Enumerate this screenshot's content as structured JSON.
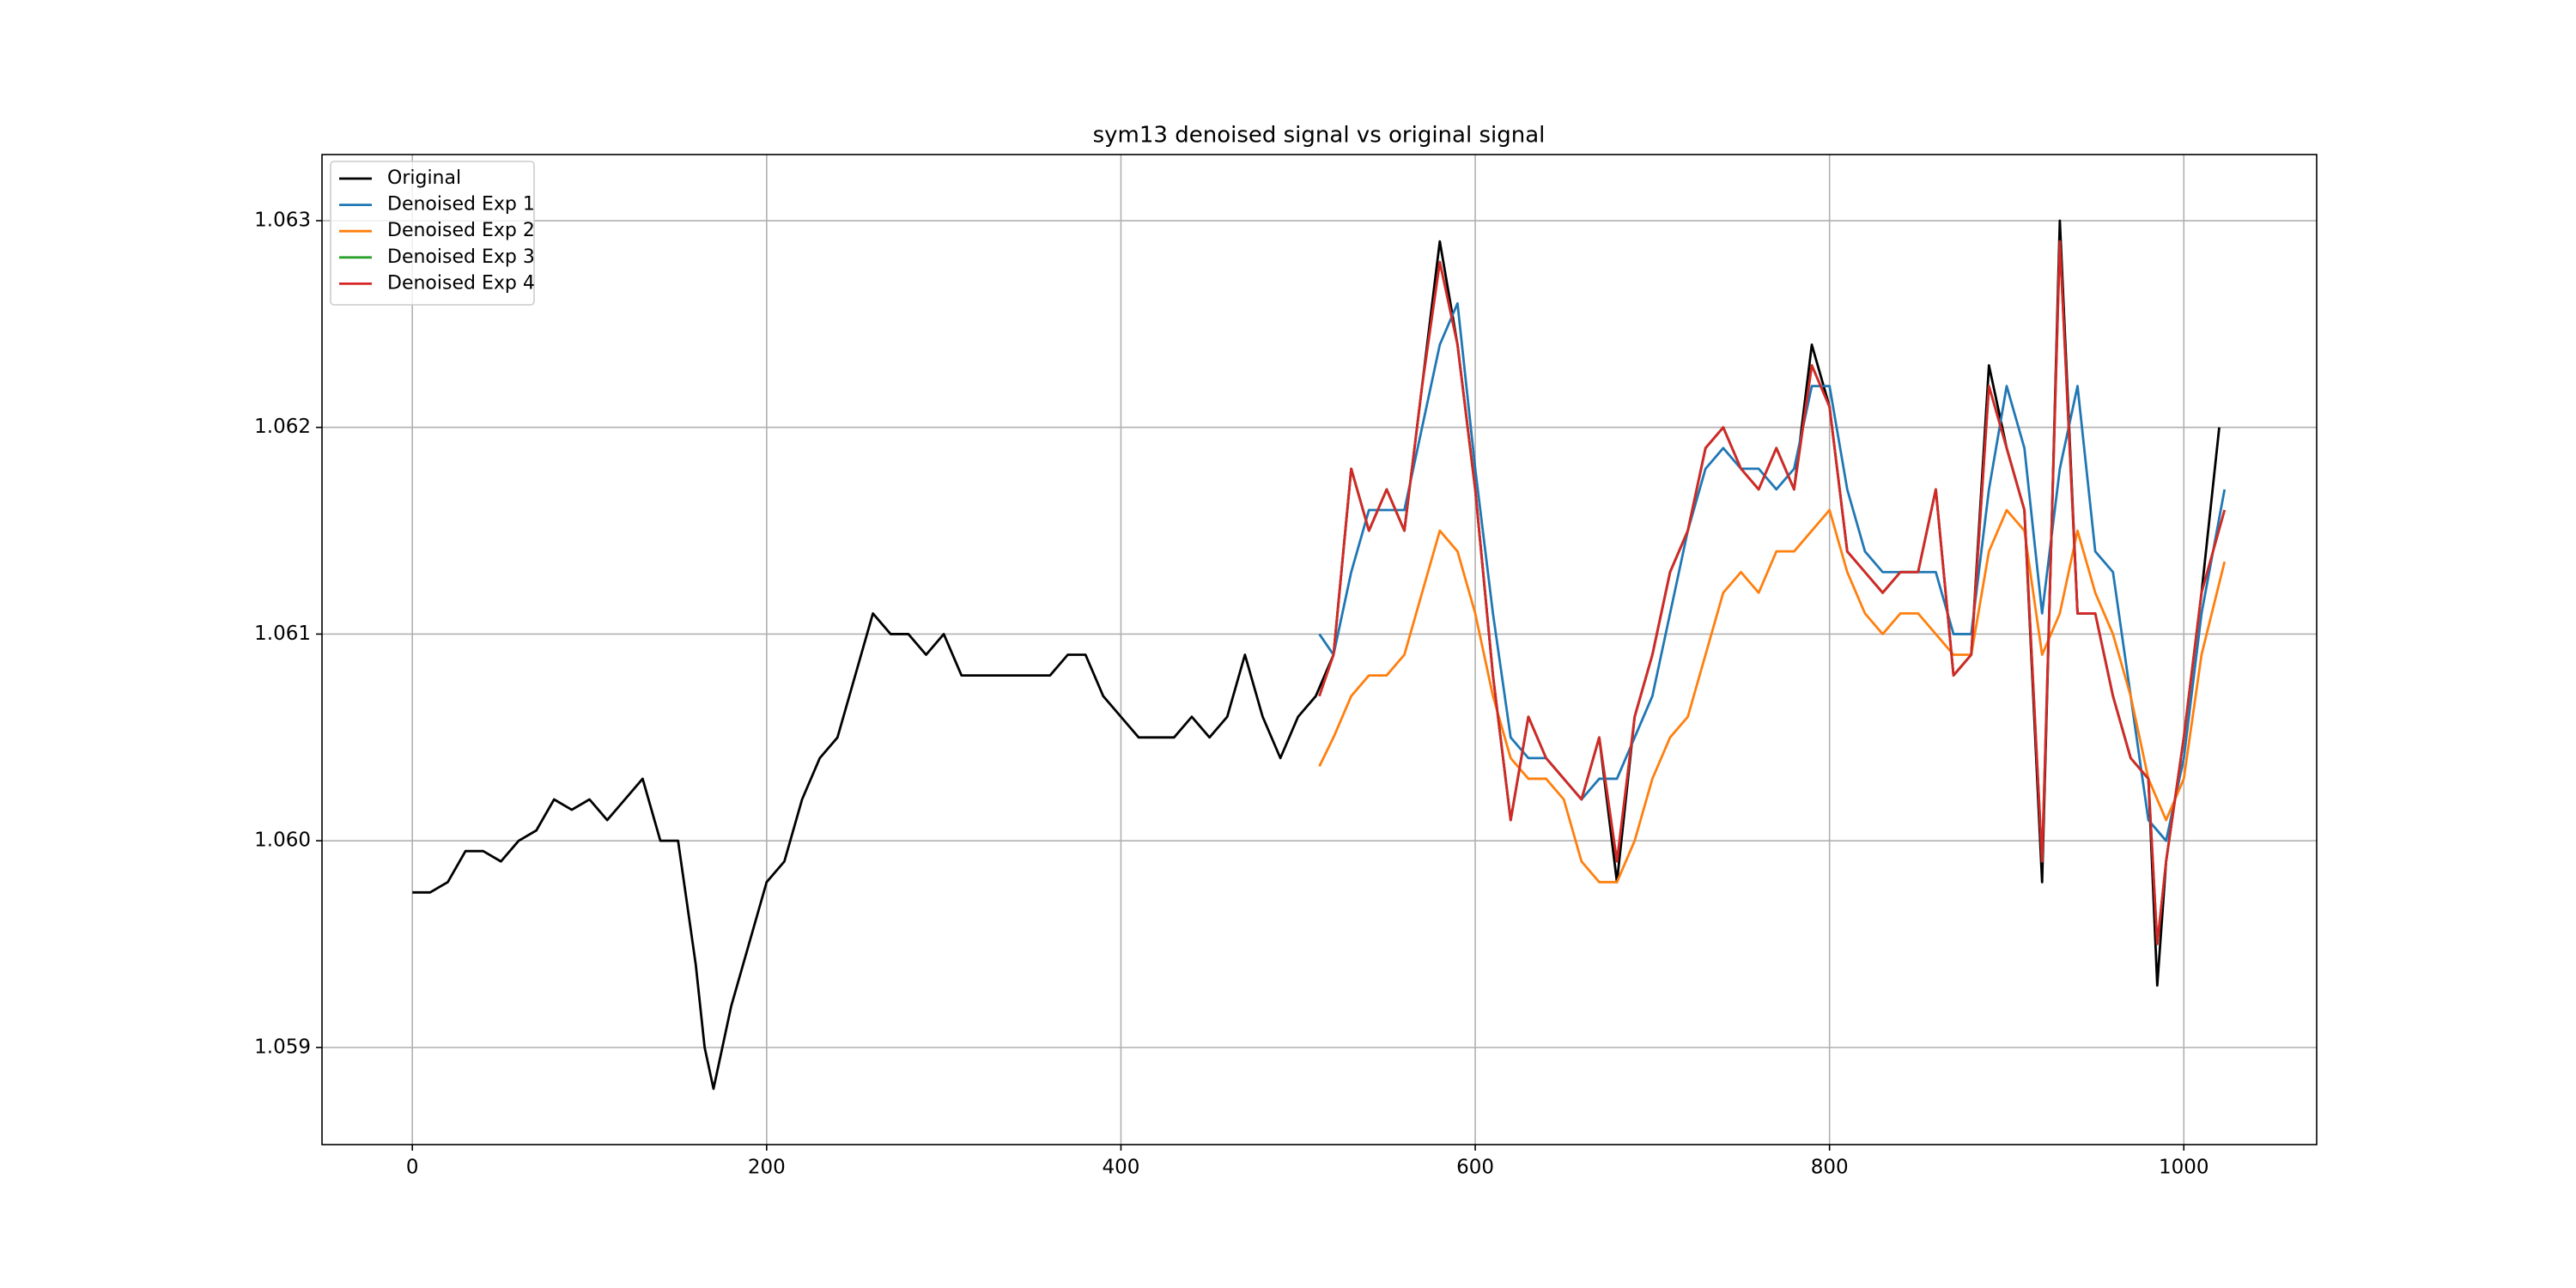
{
  "chart_data": {
    "type": "line",
    "title": "sym13 denoised signal vs original signal",
    "xlim": [
      -51,
      1075
    ],
    "xticks": [
      0,
      200,
      400,
      600,
      800,
      1000
    ],
    "ylim": [
      1.05853,
      1.06332
    ],
    "yticks": [
      {
        "value": 1.059,
        "label": "1.059"
      },
      {
        "value": 1.06,
        "label": "1.060"
      },
      {
        "value": 1.061,
        "label": "1.061"
      },
      {
        "value": 1.062,
        "label": "1.062"
      },
      {
        "value": 1.063,
        "label": "1.063"
      }
    ],
    "grid": true,
    "legend": "upper left",
    "series": [
      {
        "name": "Original",
        "color": "#000000",
        "x": [
          0,
          10,
          20,
          30,
          40,
          50,
          60,
          70,
          80,
          90,
          100,
          110,
          120,
          130,
          140,
          150,
          155,
          160,
          165,
          170,
          180,
          190,
          200,
          210,
          220,
          230,
          240,
          250,
          260,
          270,
          280,
          290,
          300,
          310,
          320,
          330,
          340,
          350,
          360,
          370,
          380,
          390,
          400,
          410,
          420,
          430,
          440,
          450,
          460,
          470,
          480,
          490,
          500,
          510,
          520,
          530,
          540,
          550,
          560,
          570,
          580,
          590,
          600,
          610,
          620,
          630,
          640,
          650,
          660,
          670,
          680,
          690,
          700,
          710,
          720,
          730,
          740,
          750,
          760,
          770,
          780,
          790,
          800,
          810,
          820,
          830,
          840,
          850,
          860,
          870,
          880,
          890,
          900,
          910,
          920,
          930,
          940,
          950,
          960,
          970,
          980,
          985,
          990,
          1000,
          1010,
          1020
        ],
        "values": [
          1.05975,
          1.05975,
          1.0598,
          1.05995,
          1.05995,
          1.0599,
          1.06,
          1.06005,
          1.0602,
          1.06015,
          1.0602,
          1.0601,
          1.0602,
          1.0603,
          1.06,
          1.06,
          1.0597,
          1.0594,
          1.059,
          1.0588,
          1.0592,
          1.0595,
          1.0598,
          1.0599,
          1.0602,
          1.0604,
          1.0605,
          1.0608,
          1.0611,
          1.061,
          1.061,
          1.0609,
          1.061,
          1.0608,
          1.0608,
          1.0608,
          1.0608,
          1.0608,
          1.0608,
          1.0609,
          1.0609,
          1.0607,
          1.0606,
          1.0605,
          1.0605,
          1.0605,
          1.0606,
          1.0605,
          1.0606,
          1.0609,
          1.0606,
          1.0604,
          1.0606,
          1.0607,
          1.0609,
          1.0618,
          1.0615,
          1.0617,
          1.0615,
          1.0622,
          1.0629,
          1.0624,
          1.0617,
          1.0608,
          1.0601,
          1.0606,
          1.0604,
          1.0603,
          1.0602,
          1.0605,
          1.0598,
          1.0606,
          1.0609,
          1.0613,
          1.0615,
          1.0619,
          1.062,
          1.0618,
          1.0617,
          1.0619,
          1.0617,
          1.0624,
          1.0621,
          1.0614,
          1.0613,
          1.0612,
          1.0613,
          1.0613,
          1.0617,
          1.0608,
          1.0609,
          1.0623,
          1.0619,
          1.0616,
          1.0598,
          1.063,
          1.0611,
          1.0611,
          1.0607,
          1.0604,
          1.0603,
          1.0593,
          1.0599,
          1.0605,
          1.0612,
          1.062
        ]
      },
      {
        "name": "Denoised Exp 1",
        "color": "#1f77b4",
        "x": [
          512,
          520,
          530,
          540,
          550,
          560,
          570,
          580,
          590,
          600,
          610,
          620,
          630,
          640,
          650,
          660,
          670,
          680,
          690,
          700,
          710,
          720,
          730,
          740,
          750,
          760,
          770,
          780,
          790,
          800,
          810,
          820,
          830,
          840,
          850,
          860,
          870,
          880,
          890,
          900,
          910,
          920,
          930,
          940,
          950,
          960,
          970,
          980,
          990,
          1000,
          1010,
          1023
        ],
        "values": [
          1.061,
          1.0609,
          1.0613,
          1.0616,
          1.0616,
          1.0616,
          1.062,
          1.0624,
          1.0626,
          1.0618,
          1.0611,
          1.0605,
          1.0604,
          1.0604,
          1.0603,
          1.0602,
          1.0603,
          1.0603,
          1.0605,
          1.0607,
          1.0611,
          1.0615,
          1.0618,
          1.0619,
          1.0618,
          1.0618,
          1.0617,
          1.0618,
          1.0622,
          1.0622,
          1.0617,
          1.0614,
          1.0613,
          1.0613,
          1.0613,
          1.0613,
          1.061,
          1.061,
          1.0617,
          1.0622,
          1.0619,
          1.0611,
          1.0618,
          1.0622,
          1.0614,
          1.0613,
          1.0607,
          1.0601,
          1.06,
          1.0604,
          1.0611,
          1.0617
        ]
      },
      {
        "name": "Denoised Exp 2",
        "color": "#ff7f0e",
        "x": [
          512,
          520,
          530,
          540,
          550,
          560,
          570,
          580,
          590,
          600,
          610,
          620,
          630,
          640,
          650,
          660,
          670,
          680,
          690,
          700,
          710,
          720,
          730,
          740,
          750,
          760,
          770,
          780,
          790,
          800,
          810,
          820,
          830,
          840,
          850,
          860,
          870,
          880,
          890,
          900,
          910,
          920,
          930,
          940,
          950,
          960,
          970,
          980,
          990,
          1000,
          1010,
          1023
        ],
        "values": [
          1.06036,
          1.0605,
          1.0607,
          1.0608,
          1.0608,
          1.0609,
          1.0612,
          1.0615,
          1.0614,
          1.0611,
          1.0607,
          1.0604,
          1.0603,
          1.0603,
          1.0602,
          1.0599,
          1.0598,
          1.0598,
          1.06,
          1.0603,
          1.0605,
          1.0606,
          1.0609,
          1.0612,
          1.0613,
          1.0612,
          1.0614,
          1.0614,
          1.0615,
          1.0616,
          1.0613,
          1.0611,
          1.061,
          1.0611,
          1.0611,
          1.061,
          1.0609,
          1.0609,
          1.0614,
          1.0616,
          1.0615,
          1.0609,
          1.0611,
          1.0615,
          1.0612,
          1.061,
          1.0607,
          1.0603,
          1.0601,
          1.0603,
          1.0609,
          1.06135
        ]
      },
      {
        "name": "Denoised Exp 3",
        "color": "#2ca02c",
        "x": [
          512,
          520,
          530,
          540,
          550,
          560,
          570,
          580,
          590,
          600,
          610,
          620,
          630,
          640,
          650,
          660,
          670,
          680,
          690,
          700,
          710,
          720,
          730,
          740,
          750,
          760,
          770,
          780,
          790,
          800,
          810,
          820,
          830,
          840,
          850,
          860,
          870,
          880,
          890,
          900,
          910,
          920,
          930,
          940,
          950,
          960,
          970,
          980,
          985,
          990,
          1000,
          1010,
          1023
        ],
        "values": [
          1.0607,
          1.0609,
          1.0618,
          1.0615,
          1.0617,
          1.0615,
          1.0622,
          1.0628,
          1.0624,
          1.0617,
          1.0608,
          1.0601,
          1.0606,
          1.0604,
          1.0603,
          1.0602,
          1.0605,
          1.0599,
          1.0606,
          1.0609,
          1.0613,
          1.0615,
          1.0619,
          1.062,
          1.0618,
          1.0617,
          1.0619,
          1.0617,
          1.0623,
          1.0621,
          1.0614,
          1.0613,
          1.0612,
          1.0613,
          1.0613,
          1.0617,
          1.0608,
          1.0609,
          1.0622,
          1.0619,
          1.0616,
          1.0599,
          1.0629,
          1.0611,
          1.0611,
          1.0607,
          1.0604,
          1.0603,
          1.0595,
          1.0599,
          1.0605,
          1.0612,
          1.0616
        ]
      },
      {
        "name": "Denoised Exp 4",
        "color": "#d62728",
        "x": [
          512,
          520,
          530,
          540,
          550,
          560,
          570,
          580,
          590,
          600,
          610,
          620,
          630,
          640,
          650,
          660,
          670,
          680,
          690,
          700,
          710,
          720,
          730,
          740,
          750,
          760,
          770,
          780,
          790,
          800,
          810,
          820,
          830,
          840,
          850,
          860,
          870,
          880,
          890,
          900,
          910,
          920,
          930,
          940,
          950,
          960,
          970,
          980,
          985,
          990,
          1000,
          1010,
          1023
        ],
        "values": [
          1.0607,
          1.0609,
          1.0618,
          1.0615,
          1.0617,
          1.0615,
          1.0622,
          1.0628,
          1.0624,
          1.0617,
          1.0608,
          1.0601,
          1.0606,
          1.0604,
          1.0603,
          1.0602,
          1.0605,
          1.0599,
          1.0606,
          1.0609,
          1.0613,
          1.0615,
          1.0619,
          1.062,
          1.0618,
          1.0617,
          1.0619,
          1.0617,
          1.0623,
          1.0621,
          1.0614,
          1.0613,
          1.0612,
          1.0613,
          1.0613,
          1.0617,
          1.0608,
          1.0609,
          1.0622,
          1.0619,
          1.0616,
          1.0599,
          1.0629,
          1.0611,
          1.0611,
          1.0607,
          1.0604,
          1.0603,
          1.0595,
          1.0599,
          1.0605,
          1.0612,
          1.0616
        ]
      }
    ]
  }
}
